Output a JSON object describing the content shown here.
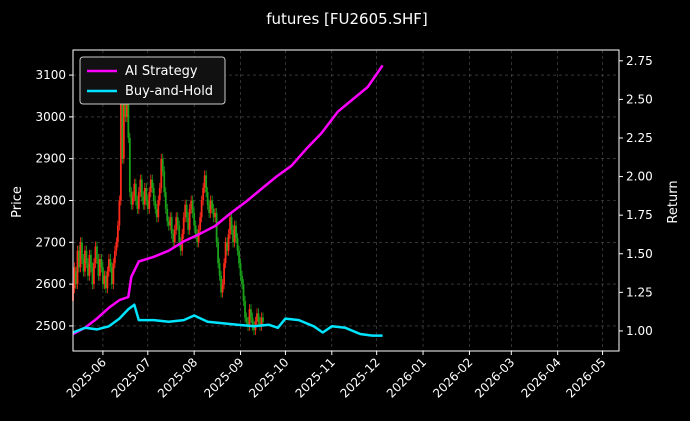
{
  "chart_data": {
    "type": "line",
    "title": "futures [FU2605.SHF]",
    "ylabel_left": "Price",
    "ylabel_right": "Return",
    "xlim": [
      "2025-05-12",
      "2026-05-12"
    ],
    "ylim_left": [
      2440,
      3160
    ],
    "ylim_right": [
      0.87,
      2.82
    ],
    "x_tick_labels": [
      "2025-06",
      "2025-07",
      "2025-08",
      "2025-09",
      "2025-10",
      "2025-11",
      "2025-12",
      "2026-01",
      "2026-02",
      "2026-03",
      "2026-04",
      "2026-05"
    ],
    "x_tick_dates": [
      "2025-06-01",
      "2025-07-01",
      "2025-08-01",
      "2025-09-01",
      "2025-10-01",
      "2025-11-01",
      "2025-12-01",
      "2026-01-01",
      "2026-02-01",
      "2026-03-01",
      "2026-04-01",
      "2026-05-01"
    ],
    "y_left_ticks": [
      2500,
      2600,
      2700,
      2800,
      2900,
      3000,
      3100
    ],
    "y_right_ticks": [
      1.0,
      1.25,
      1.5,
      1.75,
      2.0,
      2.25,
      2.5,
      2.75
    ],
    "y_right_tick_labels": [
      "1.00",
      "1.25",
      "1.50",
      "1.75",
      "2.00",
      "2.25",
      "2.50",
      "2.75"
    ],
    "grid": true,
    "legend_position": "top-left",
    "colors": {
      "background": "#000000",
      "up_candle": "#ff2a1a",
      "down_candle": "#1aa31a",
      "ai_strategy": "#ff00ff",
      "buy_and_hold": "#00e5ff",
      "grid": "#555555"
    },
    "series": [
      {
        "name": "AI Strategy",
        "axis": "right",
        "x": [
          "2025-05-12",
          "2025-05-20",
          "2025-05-28",
          "2025-06-05",
          "2025-06-12",
          "2025-06-18",
          "2025-06-20",
          "2025-06-25",
          "2025-07-05",
          "2025-07-15",
          "2025-07-25",
          "2025-08-05",
          "2025-08-15",
          "2025-08-25",
          "2025-09-05",
          "2025-09-15",
          "2025-09-25",
          "2025-10-05",
          "2025-10-15",
          "2025-10-25",
          "2025-11-05",
          "2025-11-15",
          "2025-11-25",
          "2025-12-05"
        ],
        "values": [
          0.98,
          1.02,
          1.08,
          1.15,
          1.2,
          1.22,
          1.35,
          1.45,
          1.48,
          1.52,
          1.58,
          1.63,
          1.68,
          1.76,
          1.84,
          1.92,
          2.0,
          2.07,
          2.18,
          2.28,
          2.42,
          2.5,
          2.58,
          2.72
        ]
      },
      {
        "name": "Buy-and-Hold",
        "axis": "right",
        "x": [
          "2025-05-12",
          "2025-05-20",
          "2025-05-28",
          "2025-06-05",
          "2025-06-12",
          "2025-06-18",
          "2025-06-22",
          "2025-06-25",
          "2025-07-05",
          "2025-07-15",
          "2025-07-25",
          "2025-08-01",
          "2025-08-10",
          "2025-08-20",
          "2025-08-30",
          "2025-09-10",
          "2025-09-20",
          "2025-09-26",
          "2025-10-01",
          "2025-10-10",
          "2025-10-20",
          "2025-10-26",
          "2025-11-01",
          "2025-11-10",
          "2025-11-20",
          "2025-11-28",
          "2025-12-05"
        ],
        "values": [
          0.99,
          1.02,
          1.01,
          1.03,
          1.08,
          1.14,
          1.17,
          1.07,
          1.07,
          1.06,
          1.07,
          1.1,
          1.06,
          1.05,
          1.04,
          1.03,
          1.04,
          1.02,
          1.08,
          1.07,
          1.03,
          0.99,
          1.03,
          1.02,
          0.98,
          0.97,
          0.97
        ]
      }
    ],
    "candles": {
      "axis": "left",
      "unit": "price",
      "start": "2025-05-12",
      "step_days": 1,
      "points": [
        [
          2560,
          2600
        ],
        [
          2590,
          2640
        ],
        [
          2630,
          2600
        ],
        [
          2600,
          2680
        ],
        [
          2680,
          2640
        ],
        [
          2640,
          2700
        ],
        [
          2700,
          2660
        ],
        [
          2660,
          2630
        ],
        [
          2630,
          2680
        ],
        [
          2680,
          2650
        ],
        [
          2650,
          2620
        ],
        [
          2620,
          2670
        ],
        [
          2670,
          2640
        ],
        [
          2640,
          2600
        ],
        [
          2600,
          2650
        ],
        [
          2650,
          2690
        ],
        [
          2690,
          2660
        ],
        [
          2660,
          2620
        ],
        [
          2620,
          2660
        ],
        [
          2660,
          2640
        ],
        [
          2640,
          2600
        ],
        [
          2600,
          2620
        ],
        [
          2620,
          2590
        ],
        [
          2590,
          2630
        ],
        [
          2630,
          2660
        ],
        [
          2660,
          2640
        ],
        [
          2640,
          2600
        ],
        [
          2600,
          2650
        ],
        [
          2650,
          2680
        ],
        [
          2680,
          2700
        ],
        [
          2700,
          2740
        ],
        [
          2740,
          2800
        ],
        [
          2800,
          3050
        ],
        [
          3050,
          2900
        ],
        [
          2900,
          3100
        ],
        [
          3100,
          3000
        ],
        [
          3000,
          3100
        ],
        [
          3100,
          2950
        ],
        [
          2950,
          2820
        ],
        [
          2820,
          2790
        ],
        [
          2790,
          2810
        ],
        [
          2810,
          2840
        ],
        [
          2840,
          2800
        ],
        [
          2800,
          2780
        ],
        [
          2780,
          2820
        ],
        [
          2820,
          2850
        ],
        [
          2850,
          2810
        ],
        [
          2810,
          2790
        ],
        [
          2790,
          2830
        ],
        [
          2830,
          2800
        ],
        [
          2800,
          2780
        ],
        [
          2780,
          2820
        ],
        [
          2820,
          2850
        ],
        [
          2850,
          2830
        ],
        [
          2830,
          2800
        ],
        [
          2800,
          2780
        ],
        [
          2780,
          2760
        ],
        [
          2760,
          2800
        ],
        [
          2800,
          2830
        ],
        [
          2830,
          2900
        ],
        [
          2900,
          2870
        ],
        [
          2870,
          2820
        ],
        [
          2820,
          2780
        ],
        [
          2780,
          2750
        ],
        [
          2750,
          2740
        ],
        [
          2740,
          2760
        ],
        [
          2760,
          2720
        ],
        [
          2720,
          2700
        ],
        [
          2700,
          2730
        ],
        [
          2730,
          2760
        ],
        [
          2760,
          2740
        ],
        [
          2740,
          2700
        ],
        [
          2700,
          2680
        ],
        [
          2680,
          2720
        ],
        [
          2720,
          2760
        ],
        [
          2760,
          2790
        ],
        [
          2790,
          2760
        ],
        [
          2760,
          2730
        ],
        [
          2730,
          2780
        ],
        [
          2780,
          2800
        ],
        [
          2800,
          2770
        ],
        [
          2770,
          2740
        ],
        [
          2740,
          2720
        ],
        [
          2720,
          2700
        ],
        [
          2700,
          2730
        ],
        [
          2730,
          2760
        ],
        [
          2760,
          2800
        ],
        [
          2800,
          2830
        ],
        [
          2830,
          2860
        ],
        [
          2860,
          2820
        ],
        [
          2820,
          2790
        ],
        [
          2790,
          2770
        ],
        [
          2770,
          2800
        ],
        [
          2800,
          2780
        ],
        [
          2780,
          2760
        ],
        [
          2760,
          2770
        ],
        [
          2770,
          2700
        ],
        [
          2700,
          2650
        ],
        [
          2650,
          2620
        ],
        [
          2620,
          2580
        ],
        [
          2580,
          2600
        ],
        [
          2600,
          2650
        ],
        [
          2650,
          2700
        ],
        [
          2700,
          2680
        ],
        [
          2680,
          2720
        ],
        [
          2720,
          2760
        ],
        [
          2760,
          2730
        ],
        [
          2730,
          2700
        ],
        [
          2700,
          2740
        ],
        [
          2740,
          2710
        ],
        [
          2710,
          2680
        ],
        [
          2680,
          2650
        ],
        [
          2650,
          2620
        ],
        [
          2620,
          2600
        ],
        [
          2600,
          2560
        ],
        [
          2560,
          2520
        ],
        [
          2520,
          2510
        ],
        [
          2510,
          2500
        ],
        [
          2500,
          2540
        ],
        [
          2540,
          2520
        ],
        [
          2520,
          2500
        ],
        [
          2500,
          2490
        ],
        [
          2490,
          2510
        ],
        [
          2510,
          2530
        ],
        [
          2530,
          2510
        ],
        [
          2510,
          2500
        ],
        [
          2500,
          2520
        ],
        [
          2520,
          2510
        ]
      ]
    }
  }
}
